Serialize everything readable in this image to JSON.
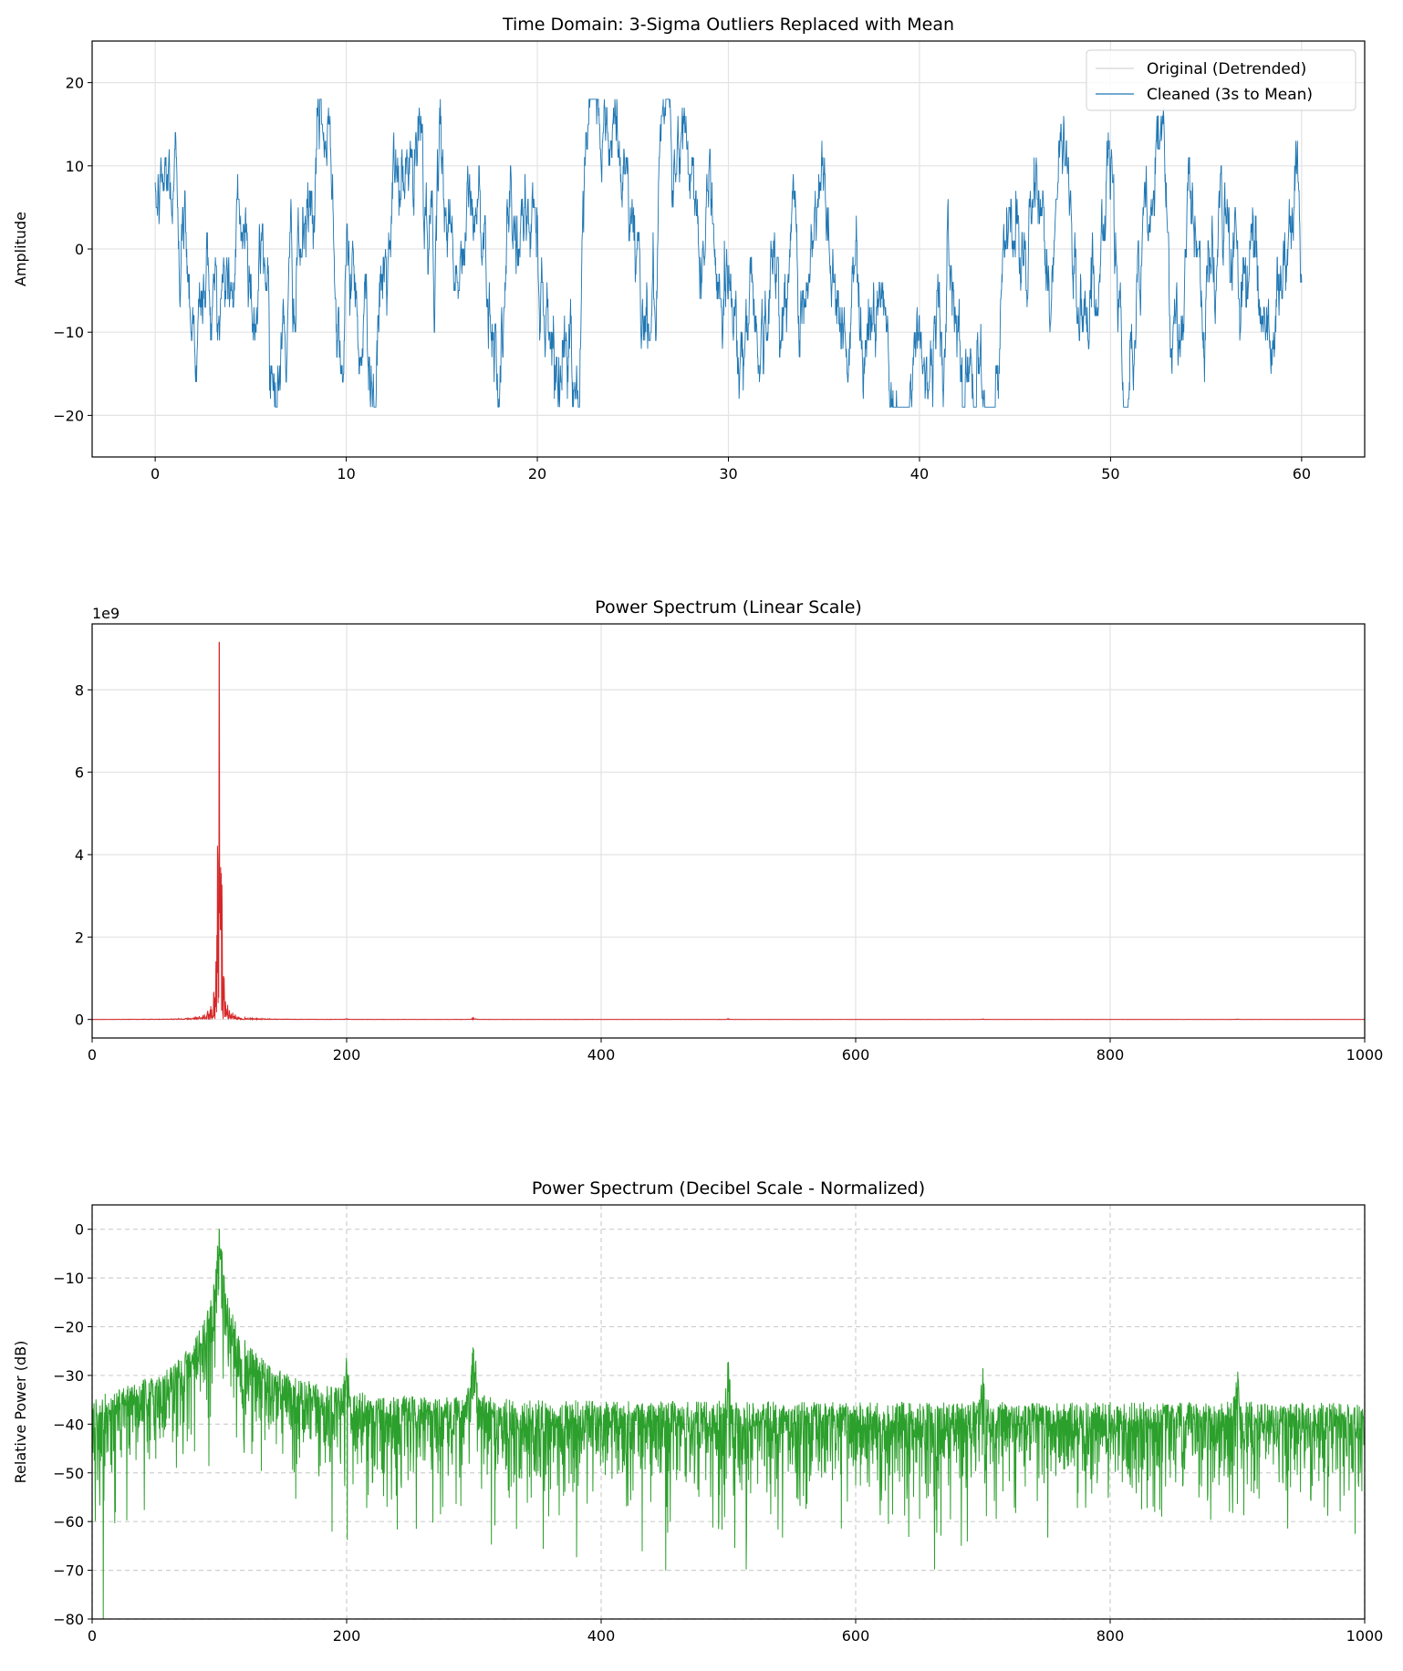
{
  "chart_data": [
    {
      "type": "line",
      "title": "Time Domain: 3-Sigma Outliers Replaced with Mean",
      "xlabel": "",
      "ylabel": "Amplitude",
      "xlim": [
        -3.3,
        63.3
      ],
      "ylim": [
        -25,
        25
      ],
      "xticks": [
        0,
        10,
        20,
        30,
        40,
        50,
        60
      ],
      "yticks": [
        -20,
        -10,
        0,
        10,
        20
      ],
      "grid": "solid",
      "legend_position": "top-right",
      "series": [
        {
          "name": "Original (Detrended)",
          "color": "#d3d3d3",
          "x_range": [
            0,
            60
          ],
          "value_range": [
            -19,
            18
          ]
        },
        {
          "name": "Cleaned (3s to Mean)",
          "color": "#1f77b4",
          "x_range": [
            0,
            60
          ],
          "value_range": [
            -19,
            18
          ]
        }
      ]
    },
    {
      "type": "line",
      "title": "Power Spectrum (Linear Scale)",
      "xlabel": "",
      "ylabel": "",
      "y_offset_label": "1e9",
      "xlim": [
        0,
        1000
      ],
      "ylim": [
        -0.45,
        9.6
      ],
      "y_unit_scale": 1000000000.0,
      "xticks": [
        0,
        200,
        400,
        600,
        800,
        1000
      ],
      "yticks": [
        0,
        2,
        4,
        6,
        8
      ],
      "grid": "solid",
      "series": [
        {
          "color": "#d62728",
          "peaks": [
            {
              "x": 100,
              "y": 9.15
            },
            {
              "x": 300,
              "y": 0.06
            }
          ],
          "baseline": 0
        }
      ]
    },
    {
      "type": "line",
      "title": "Power Spectrum (Decibel Scale - Normalized)",
      "xlabel": "",
      "ylabel": "Relative Power (dB)",
      "xlim": [
        0,
        1000
      ],
      "ylim": [
        -80,
        5
      ],
      "xticks": [
        0,
        200,
        400,
        600,
        800,
        1000
      ],
      "yticks": [
        -80,
        -70,
        -60,
        -50,
        -40,
        -30,
        -20,
        -10,
        0
      ],
      "grid": "dashed",
      "series": [
        {
          "color": "#2ca02c",
          "peaks": [
            {
              "x": 100,
              "y": 0
            },
            {
              "x": 200,
              "y": -26
            },
            {
              "x": 300,
              "y": -22
            },
            {
              "x": 500,
              "y": -27
            },
            {
              "x": 700,
              "y": -30
            },
            {
              "x": 900,
              "y": -30
            }
          ],
          "noise_floor_top": -35,
          "noise_floor_bottom": -65
        }
      ]
    }
  ]
}
